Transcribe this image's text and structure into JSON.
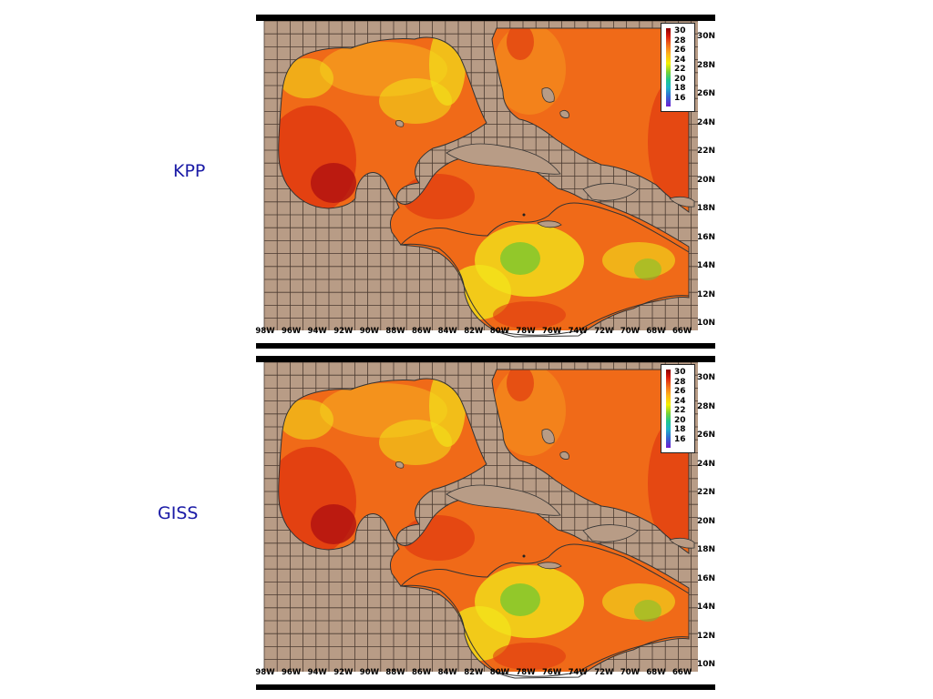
{
  "panels": [
    {
      "label": "KPP"
    },
    {
      "label": "GISS"
    }
  ],
  "legend_ticks": [
    "30",
    "28",
    "26",
    "24",
    "22",
    "20",
    "18",
    "16"
  ],
  "lat_labels": [
    "30N",
    "28N",
    "26N",
    "24N",
    "22N",
    "20N",
    "18N",
    "16N",
    "14N",
    "12N",
    "10N"
  ],
  "lon_labels": [
    "98W",
    "96W",
    "94W",
    "92W",
    "90W",
    "88W",
    "86W",
    "84W",
    "82W",
    "80W",
    "78W",
    "76W",
    "74W",
    "72W",
    "70W",
    "68W",
    "66W"
  ],
  "colors": {
    "land": "#b89c86",
    "grid": "#4a3a30",
    "warm_dark": "#b01010",
    "warm": "#e03a10",
    "orange": "#f06a18",
    "amber": "#f6a01e",
    "yellow": "#f2e21a",
    "green": "#6ac832",
    "label_blue": "#1a1aa6"
  }
}
